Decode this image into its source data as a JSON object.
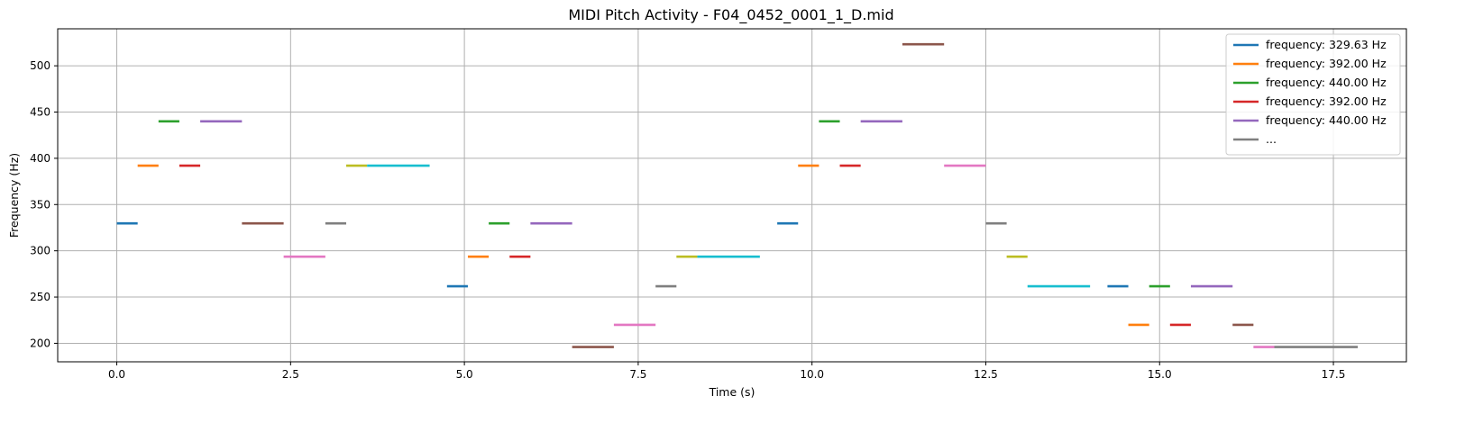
{
  "chart_data": {
    "type": "line",
    "title": "MIDI Pitch Activity - F04_0452_0001_1_D.mid",
    "xlabel": "Time (s)",
    "ylabel": "Frequency (Hz)",
    "xlim": [
      -0.85,
      18.55
    ],
    "ylim": [
      180,
      540
    ],
    "x_ticks": [
      0.0,
      2.5,
      5.0,
      7.5,
      10.0,
      12.5,
      15.0,
      17.5
    ],
    "x_tick_labels": [
      "0.0",
      "2.5",
      "5.0",
      "7.5",
      "10.0",
      "12.5",
      "15.0",
      "17.5"
    ],
    "y_ticks": [
      200,
      250,
      300,
      350,
      400,
      450,
      500
    ],
    "y_tick_labels": [
      "200",
      "250",
      "300",
      "350",
      "400",
      "450",
      "500"
    ],
    "grid": true,
    "legend_position": "top-right",
    "legend": [
      {
        "label": "frequency: 329.63 Hz",
        "color": "#1f77b4"
      },
      {
        "label": "frequency: 392.00 Hz",
        "color": "#ff7f0e"
      },
      {
        "label": "frequency: 440.00 Hz",
        "color": "#2ca02c"
      },
      {
        "label": "frequency: 392.00 Hz",
        "color": "#d62728"
      },
      {
        "label": "frequency: 440.00 Hz",
        "color": "#9467bd"
      },
      {
        "label": "...",
        "color": "#7f7f7f"
      }
    ],
    "segments": [
      {
        "start": 0.0,
        "end": 0.3,
        "frequency": 329.63,
        "color": "#1f77b4"
      },
      {
        "start": 0.3,
        "end": 0.6,
        "frequency": 392.0,
        "color": "#ff7f0e"
      },
      {
        "start": 0.6,
        "end": 0.9,
        "frequency": 440.0,
        "color": "#2ca02c"
      },
      {
        "start": 0.9,
        "end": 1.2,
        "frequency": 392.0,
        "color": "#d62728"
      },
      {
        "start": 1.2,
        "end": 1.8,
        "frequency": 440.0,
        "color": "#9467bd"
      },
      {
        "start": 1.8,
        "end": 2.4,
        "frequency": 329.63,
        "color": "#8c564b"
      },
      {
        "start": 2.4,
        "end": 3.0,
        "frequency": 293.66,
        "color": "#e377c2"
      },
      {
        "start": 3.0,
        "end": 3.3,
        "frequency": 329.63,
        "color": "#7f7f7f"
      },
      {
        "start": 3.3,
        "end": 3.6,
        "frequency": 392.0,
        "color": "#bcbd22"
      },
      {
        "start": 3.6,
        "end": 4.5,
        "frequency": 392.0,
        "color": "#17becf"
      },
      {
        "start": 4.75,
        "end": 5.05,
        "frequency": 261.63,
        "color": "#1f77b4"
      },
      {
        "start": 5.05,
        "end": 5.35,
        "frequency": 293.66,
        "color": "#ff7f0e"
      },
      {
        "start": 5.35,
        "end": 5.65,
        "frequency": 329.63,
        "color": "#2ca02c"
      },
      {
        "start": 5.65,
        "end": 5.95,
        "frequency": 293.66,
        "color": "#d62728"
      },
      {
        "start": 5.95,
        "end": 6.55,
        "frequency": 329.63,
        "color": "#9467bd"
      },
      {
        "start": 6.55,
        "end": 7.15,
        "frequency": 196.0,
        "color": "#8c564b"
      },
      {
        "start": 7.15,
        "end": 7.75,
        "frequency": 220.0,
        "color": "#e377c2"
      },
      {
        "start": 7.75,
        "end": 8.05,
        "frequency": 261.63,
        "color": "#7f7f7f"
      },
      {
        "start": 8.05,
        "end": 8.35,
        "frequency": 293.66,
        "color": "#bcbd22"
      },
      {
        "start": 8.35,
        "end": 9.25,
        "frequency": 293.66,
        "color": "#17becf"
      },
      {
        "start": 9.5,
        "end": 9.8,
        "frequency": 329.63,
        "color": "#1f77b4"
      },
      {
        "start": 9.8,
        "end": 10.1,
        "frequency": 392.0,
        "color": "#ff7f0e"
      },
      {
        "start": 10.1,
        "end": 10.4,
        "frequency": 440.0,
        "color": "#2ca02c"
      },
      {
        "start": 10.4,
        "end": 10.7,
        "frequency": 392.0,
        "color": "#d62728"
      },
      {
        "start": 10.7,
        "end": 11.3,
        "frequency": 440.0,
        "color": "#9467bd"
      },
      {
        "start": 11.3,
        "end": 11.9,
        "frequency": 523.25,
        "color": "#8c564b"
      },
      {
        "start": 11.9,
        "end": 12.5,
        "frequency": 392.0,
        "color": "#e377c2"
      },
      {
        "start": 12.5,
        "end": 12.8,
        "frequency": 329.63,
        "color": "#7f7f7f"
      },
      {
        "start": 12.8,
        "end": 13.1,
        "frequency": 293.66,
        "color": "#bcbd22"
      },
      {
        "start": 13.1,
        "end": 14.0,
        "frequency": 261.63,
        "color": "#17becf"
      },
      {
        "start": 14.25,
        "end": 14.55,
        "frequency": 261.63,
        "color": "#1f77b4"
      },
      {
        "start": 14.55,
        "end": 14.85,
        "frequency": 220.0,
        "color": "#ff7f0e"
      },
      {
        "start": 14.85,
        "end": 15.15,
        "frequency": 261.63,
        "color": "#2ca02c"
      },
      {
        "start": 15.15,
        "end": 15.45,
        "frequency": 220.0,
        "color": "#d62728"
      },
      {
        "start": 15.45,
        "end": 16.05,
        "frequency": 261.63,
        "color": "#9467bd"
      },
      {
        "start": 16.05,
        "end": 16.35,
        "frequency": 220.0,
        "color": "#8c564b"
      },
      {
        "start": 16.35,
        "end": 16.65,
        "frequency": 196.0,
        "color": "#e377c2"
      },
      {
        "start": 16.65,
        "end": 17.85,
        "frequency": 196.0,
        "color": "#7f7f7f"
      }
    ]
  }
}
